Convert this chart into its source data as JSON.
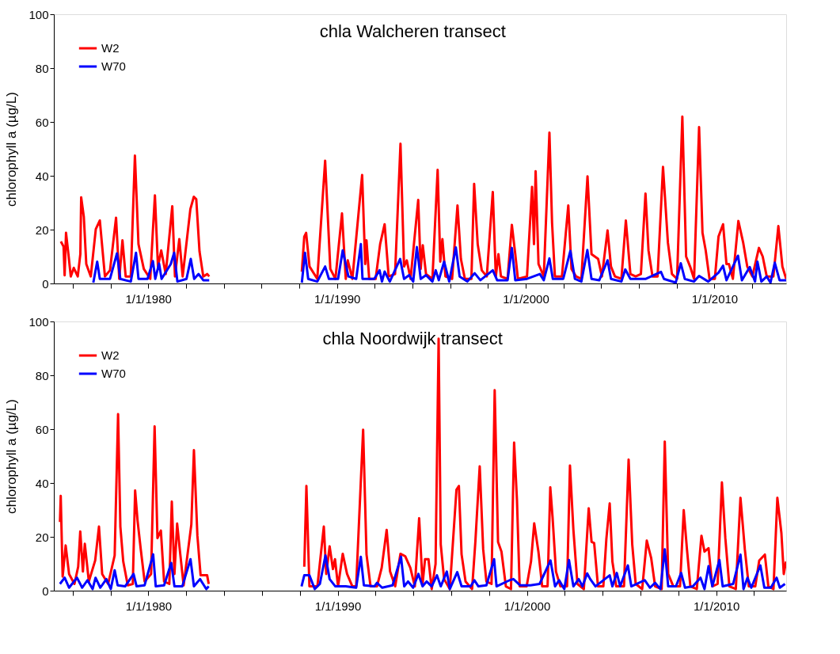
{
  "chart_data": [
    {
      "type": "line",
      "title": "chla Walcheren transect",
      "ylabel": "chlorophyll a (µg/L)",
      "xlim": [
        "1975-01-01",
        "2013-10-19"
      ],
      "ylim": [
        0,
        100
      ],
      "yticks": [
        0,
        20,
        40,
        60,
        80,
        100
      ],
      "xticks": [
        {
          "value": "1976-01-01",
          "label": null
        },
        {
          "value": "1978-01-01",
          "label": null
        },
        {
          "value": "1980-01-01",
          "label": "1/1/1980"
        },
        {
          "value": "1982-01-01",
          "label": null
        },
        {
          "value": "1984-01-01",
          "label": null
        },
        {
          "value": "1986-01-01",
          "label": null
        },
        {
          "value": "1988-01-01",
          "label": null
        },
        {
          "value": "1990-01-01",
          "label": "1/1/1990"
        },
        {
          "value": "1992-01-01",
          "label": null
        },
        {
          "value": "1994-01-01",
          "label": null
        },
        {
          "value": "1996-01-01",
          "label": null
        },
        {
          "value": "1998-01-01",
          "label": null
        },
        {
          "value": "2000-01-01",
          "label": "1/1/2000"
        },
        {
          "value": "2002-01-01",
          "label": null
        },
        {
          "value": "2004-01-01",
          "label": null
        },
        {
          "value": "2006-01-01",
          "label": null
        },
        {
          "value": "2008-01-01",
          "label": null
        },
        {
          "value": "2010-01-01",
          "label": "1/1/2010"
        },
        {
          "value": "2012-01-01",
          "label": null
        }
      ],
      "grid": false,
      "legend": "top left",
      "line_style": "solid",
      "series": [
        {
          "name": "W2",
          "color": "#ff0000",
          "x": [
            "1975-05-17",
            "1975-07-08",
            "1975-07-29",
            "1975-08-25",
            "1975-10-15",
            "1975-11-25",
            "1976-01-22",
            "1976-04-08",
            "1976-05-28",
            "1976-06-13",
            "1976-08-03",
            "1976-09-20",
            "1976-12-16",
            "1977-03-23",
            "1977-06-09",
            "1977-07-29",
            "1977-09-16",
            "1977-12-23",
            "1978-04-19",
            "1978-06-20",
            "1978-08-21",
            "1978-10-22",
            "1979-01-29",
            "1979-04-19",
            "1979-06-27",
            "1979-10-08",
            "1980-02-10",
            "1980-04-01",
            "1980-05-10",
            "1980-07-08",
            "1980-09-09",
            "1980-12-05",
            "1981-04-11",
            "1981-06-02",
            "1981-08-25",
            "1981-10-29",
            "1982-03-27",
            "1982-06-02",
            "1982-07-19",
            "1982-09-20",
            "1982-12-02",
            "1983-02-17",
            "1983-03-27",
            "1985-07-01",
            "1988-02-21",
            "1988-04-08",
            "1988-05-14",
            "1988-07-19",
            "1988-12-16",
            "1989-05-17",
            "1989-08-25",
            "1989-12-02",
            "1990-04-08",
            "1990-06-20",
            "1990-07-29",
            "1990-10-26",
            "1991-05-03",
            "1991-07-01",
            "1991-07-26",
            "1991-09-16",
            "1992-01-19",
            "1992-04-15",
            "1992-07-11",
            "1992-09-27",
            "1993-01-29",
            "1993-05-14",
            "1993-07-22",
            "1993-09-13",
            "1993-11-25",
            "1994-04-22",
            "1994-06-09",
            "1994-07-19",
            "1994-09-20",
            "1995-01-22",
            "1995-05-03",
            "1995-06-23",
            "1995-08-03",
            "1995-10-01",
            "1996-02-07",
            "1996-05-21",
            "1996-07-26",
            "1996-10-11",
            "1997-02-14",
            "1997-04-08",
            "1997-06-16",
            "1997-09-02",
            "1997-12-09",
            "1998-04-04",
            "1998-06-02",
            "1998-07-22",
            "1998-09-09",
            "1999-01-15",
            "1999-04-08",
            "1999-06-13",
            "1999-08-03",
            "2000-01-26",
            "2000-05-03",
            "2000-06-09",
            "2000-07-11",
            "2000-09-05",
            "2000-12-16",
            "2001-04-04",
            "2001-05-25",
            "2001-07-19",
            "2001-12-02",
            "2002-04-04",
            "2002-06-05",
            "2002-09-02",
            "2002-12-13",
            "2003-04-11",
            "2003-06-27",
            "2003-11-03",
            "2004-01-15",
            "2004-05-03",
            "2004-07-08",
            "2004-09-23",
            "2005-01-26",
            "2005-04-22",
            "2005-07-19",
            "2005-10-29",
            "2006-02-07",
            "2006-05-07",
            "2006-07-04",
            "2006-09-20",
            "2006-12-27",
            "2007-04-11",
            "2007-07-15",
            "2007-10-01",
            "2008-01-08",
            "2008-04-19",
            "2008-07-01",
            "2008-09-16",
            "2008-12-02",
            "2009-03-09",
            "2009-05-14",
            "2009-07-15",
            "2009-09-27",
            "2010-01-08",
            "2010-03-20",
            "2010-06-16",
            "2010-08-21",
            "2010-10-08",
            "2010-12-23",
            "2011-04-08",
            "2011-07-11",
            "2011-09-27",
            "2012-01-04",
            "2012-05-10",
            "2012-07-22",
            "2012-10-08",
            "2013-02-14",
            "2013-05-21",
            "2013-08-07",
            "2013-10-19"
          ],
          "values": [
            15.6,
            13.7,
            3,
            18.8,
            10,
            2.6,
            5.8,
            2.6,
            10.9,
            32,
            24.8,
            7.2,
            2.6,
            20.2,
            23.4,
            12.8,
            2.6,
            4.9,
            24.4,
            1.7,
            16,
            2.6,
            2.6,
            47.5,
            14.6,
            5.4,
            1.7,
            19.7,
            32.7,
            6.3,
            12.3,
            3.5,
            28.7,
            2.6,
            16.5,
            2.6,
            27.6,
            32.2,
            31.3,
            11.9,
            2.6,
            3.5,
            2.6,
            null,
            4.4,
            17.4,
            18.8,
            6.3,
            1.7,
            45.6,
            5.4,
            1.7,
            26,
            1.7,
            8.6,
            1.7,
            40.3,
            7.2,
            16,
            1.7,
            1.7,
            14.6,
            22,
            2.6,
            3.5,
            51.9,
            6.3,
            8.6,
            1.7,
            31,
            5.4,
            14.2,
            3.5,
            1.7,
            42.2,
            8.1,
            16.5,
            2.6,
            1.7,
            29,
            9.1,
            1.7,
            1.7,
            37,
            14.6,
            4.9,
            2.6,
            34,
            2.6,
            10.9,
            2.6,
            1.7,
            21.8,
            10.9,
            1.7,
            2.6,
            35.9,
            14.6,
            41.7,
            7.2,
            2.6,
            56,
            22.5,
            2.6,
            2.6,
            29,
            5.4,
            2.6,
            1.7,
            39.8,
            10.9,
            9.1,
            2.6,
            19.7,
            6.3,
            2.6,
            1.7,
            23.4,
            3.5,
            2.6,
            3.5,
            33.4,
            12.3,
            2.6,
            2.6,
            43.3,
            15.1,
            3.5,
            1.7,
            62,
            10,
            6.3,
            1.7,
            58.1,
            18.8,
            12.3,
            1.7,
            1.7,
            17.4,
            22,
            7.2,
            7.2,
            1.7,
            23.2,
            15.1,
            6.3,
            2.6,
            13.2,
            10,
            2.6,
            2.6,
            21.3,
            6.3,
            1.7
          ]
        },
        {
          "name": "W70",
          "color": "#0000ff",
          "x": [
            "1977-02-03",
            "1977-04-19",
            "1977-06-09",
            "1977-12-23",
            "1978-05-07",
            "1978-07-11",
            "1979-01-29",
            "1979-05-10",
            "1979-06-27",
            "1979-12-20",
            "1980-04-01",
            "1980-05-17",
            "1980-07-29",
            "1980-09-16",
            "1981-03-13",
            "1981-05-17",
            "1981-07-19",
            "1982-01-11",
            "1982-04-04",
            "1982-06-09",
            "1982-09-02",
            "1982-12-02",
            "1983-03-27",
            "1985-07-01",
            "1988-02-21",
            "1988-04-22",
            "1988-06-23",
            "1988-12-16",
            "1989-05-17",
            "1989-07-29",
            "1990-01-22",
            "1990-04-22",
            "1990-08-10",
            "1991-01-08",
            "1991-04-08",
            "1991-05-10",
            "1991-12-23",
            "1992-04-04",
            "1992-05-21",
            "1992-07-11",
            "1992-10-19",
            "1993-05-07",
            "1993-07-22",
            "1993-10-29",
            "1994-01-15",
            "1994-03-27",
            "1994-06-09",
            "1994-09-20",
            "1995-01-22",
            "1995-03-27",
            "1995-05-25",
            "1995-09-05",
            "1995-12-13",
            "1996-04-19",
            "1996-07-01",
            "1996-11-28",
            "1997-04-19",
            "1997-08-07",
            "1998-04-04",
            "1998-06-27",
            "1999-01-15",
            "1999-04-08",
            "1999-06-13",
            "2000-01-26",
            "2000-10-01",
            "2000-12-16",
            "2001-04-04",
            "2001-06-09",
            "2001-12-27",
            "2002-05-14",
            "2002-08-10",
            "2002-12-13",
            "2003-04-08",
            "2003-06-27",
            "2003-11-25",
            "2004-05-03",
            "2004-07-08",
            "2005-01-26",
            "2005-04-11",
            "2005-07-19",
            "2006-05-14",
            "2007-03-02",
            "2007-04-29",
            "2007-12-13",
            "2008-03-20",
            "2008-06-05",
            "2008-11-28",
            "2009-03-09",
            "2009-09-02",
            "2010-03-20",
            "2010-06-16",
            "2010-08-21",
            "2011-04-01",
            "2011-06-16",
            "2011-11-14",
            "2012-02-25",
            "2012-04-11",
            "2012-06-27",
            "2012-10-08",
            "2012-12-20",
            "2013-03-13",
            "2013-06-13",
            "2013-10-19"
          ],
          "values": [
            0.3,
            8.1,
            1.7,
            1.7,
            11.2,
            1.7,
            0.7,
            11.4,
            1.7,
            1.7,
            8.3,
            1.7,
            7.4,
            1.7,
            7.2,
            11.4,
            0.7,
            1.7,
            9.1,
            1.7,
            3.5,
            1.2,
            1.2,
            null,
            0.3,
            11.4,
            1.7,
            0.7,
            6.3,
            1.7,
            1.7,
            12.3,
            2.6,
            1.7,
            14.6,
            1.7,
            1.7,
            4.9,
            0.7,
            4.4,
            0.7,
            9.1,
            1.7,
            3.1,
            0.7,
            13.5,
            1.7,
            3.1,
            0.7,
            4.9,
            1.2,
            8.1,
            0.7,
            13.4,
            2.6,
            0.7,
            3.8,
            1.2,
            4.9,
            1.2,
            1.2,
            13.2,
            1.2,
            1.7,
            3.5,
            1.2,
            9.3,
            1.7,
            1.7,
            12.1,
            1.7,
            0.7,
            12.4,
            1.7,
            1.2,
            8.6,
            1.7,
            0.7,
            5.2,
            1.7,
            1.7,
            4.3,
            1.7,
            0.3,
            7.5,
            1.7,
            0.7,
            2.8,
            0.7,
            4,
            6.6,
            1.2,
            10.3,
            1.2,
            6.1,
            0.7,
            8.1,
            0.7,
            2.6,
            0.3,
            7.7,
            1.2,
            1.2
          ]
        }
      ]
    },
    {
      "type": "line",
      "title": "chla Noordwijk transect",
      "ylabel": "chlorophyll a (µg/L)",
      "xlim": [
        "1975-01-01",
        "2013-09-13"
      ],
      "ylim": [
        0,
        100
      ],
      "yticks": [
        0,
        20,
        40,
        60,
        80,
        100
      ],
      "xticks": [
        {
          "value": "1976-01-01",
          "label": null
        },
        {
          "value": "1978-01-01",
          "label": null
        },
        {
          "value": "1980-01-01",
          "label": "1/1/1980"
        },
        {
          "value": "1982-01-01",
          "label": null
        },
        {
          "value": "1984-01-01",
          "label": null
        },
        {
          "value": "1986-01-01",
          "label": null
        },
        {
          "value": "1988-01-01",
          "label": null
        },
        {
          "value": "1990-01-01",
          "label": "1/1/1990"
        },
        {
          "value": "1992-01-01",
          "label": null
        },
        {
          "value": "1994-01-01",
          "label": null
        },
        {
          "value": "1996-01-01",
          "label": null
        },
        {
          "value": "1998-01-01",
          "label": null
        },
        {
          "value": "2000-01-01",
          "label": "1/1/2000"
        },
        {
          "value": "2002-01-01",
          "label": null
        },
        {
          "value": "2004-01-01",
          "label": null
        },
        {
          "value": "2006-01-01",
          "label": null
        },
        {
          "value": "2008-01-01",
          "label": null
        },
        {
          "value": "2010-01-01",
          "label": "1/1/2010"
        },
        {
          "value": "2012-01-01",
          "label": null
        }
      ],
      "grid": false,
      "legend": "top left",
      "line_style": "solid",
      "series": [
        {
          "name": "W2",
          "color": "#ff0000",
          "x": [
            "1975-04-29",
            "1975-05-14",
            "1975-06-20",
            "1975-08-17",
            "1975-10-22",
            "1976-02-03",
            "1976-04-15",
            "1976-05-25",
            "1976-07-15",
            "1976-08-21",
            "1976-11-07",
            "1977-03-09",
            "1977-05-21",
            "1977-07-22",
            "1977-11-14",
            "1978-03-20",
            "1978-05-25",
            "1978-07-08",
            "1978-09-02",
            "1978-11-28",
            "1979-03-05",
            "1979-04-19",
            "1979-06-05",
            "1979-08-03",
            "1979-10-19",
            "1980-02-21",
            "1980-04-29",
            "1980-06-23",
            "1980-08-28",
            "1980-10-29",
            "1981-02-07",
            "1981-03-27",
            "1981-05-17",
            "1981-07-08",
            "1981-08-25",
            "1981-11-10",
            "1982-04-08",
            "1982-05-28",
            "1982-08-03",
            "1982-10-04",
            "1983-02-07",
            "1983-03-09",
            "1985-07-01",
            "1988-03-27",
            "1988-05-07",
            "1988-07-04",
            "1988-12-05",
            "1989-04-08",
            "1989-05-25",
            "1989-07-29",
            "1989-10-01",
            "1989-11-10",
            "1990-01-08",
            "1990-04-08",
            "1990-07-01",
            "1990-10-11",
            "1990-12-23",
            "1991-05-07",
            "1991-07-11",
            "1991-09-27",
            "1992-01-29",
            "1992-04-29",
            "1992-08-03",
            "1992-10-08",
            "1993-01-15",
            "1993-04-26",
            "1993-07-26",
            "1993-11-03",
            "1994-01-29",
            "1994-04-22",
            "1994-06-27",
            "1994-08-14",
            "1994-10-19",
            "1994-12-20",
            "1995-03-05",
            "1995-05-03",
            "1995-06-13",
            "1995-08-17",
            "1995-12-05",
            "1996-04-11",
            "1996-05-28",
            "1996-07-19",
            "1996-10-04",
            "1997-02-07",
            "1997-04-11",
            "1997-07-04",
            "1997-09-09",
            "1997-11-10",
            "1998-02-17",
            "1998-04-19",
            "1998-06-23",
            "1998-08-28",
            "1998-11-21",
            "1999-02-28",
            "1999-04-29",
            "1999-06-23",
            "1999-08-14",
            "1999-12-27",
            "2000-03-20",
            "2000-05-21",
            "2000-08-10",
            "2000-10-22",
            "2001-02-03",
            "2001-03-27",
            "2001-05-10",
            "2001-07-15",
            "2001-10-08",
            "2002-02-14",
            "2002-04-11",
            "2002-06-16",
            "2002-09-02",
            "2003-01-04",
            "2003-04-08",
            "2003-06-02",
            "2003-07-22",
            "2003-10-04",
            "2004-01-15",
            "2004-03-13",
            "2004-05-17",
            "2004-07-08",
            "2004-09-20",
            "2005-02-17",
            "2005-05-17",
            "2005-07-26",
            "2005-10-01",
            "2006-02-03",
            "2006-05-03",
            "2006-07-26",
            "2006-10-11",
            "2007-02-14",
            "2007-04-15",
            "2007-06-20",
            "2007-09-27",
            "2008-02-03",
            "2008-04-15",
            "2008-06-16",
            "2008-08-21",
            "2008-12-23",
            "2009-03-23",
            "2009-05-21",
            "2009-08-07",
            "2009-10-19",
            "2010-01-29",
            "2010-04-22",
            "2010-06-27",
            "2010-09-13",
            "2011-01-15",
            "2011-04-15",
            "2011-07-08",
            "2011-09-23",
            "2012-01-26",
            "2012-04-11",
            "2012-07-29",
            "2012-10-04",
            "2013-01-11",
            "2013-03-27",
            "2013-06-13",
            "2013-07-29",
            "2013-09-09"
          ],
          "values": [
            25.5,
            35.2,
            5.2,
            16.8,
            6.2,
            2.5,
            8.9,
            22,
            7.1,
            17.4,
            3.4,
            11.2,
            23.8,
            6.2,
            2.5,
            13.1,
            65.6,
            23.8,
            10.8,
            2,
            2.5,
            37.2,
            26,
            15.8,
            3.4,
            6.2,
            61,
            19.5,
            22.3,
            3.4,
            2.5,
            33.1,
            6.2,
            24.9,
            15.8,
            2,
            24.6,
            52.2,
            20.4,
            5.7,
            5.7,
            2.5,
            null,
            8.9,
            38.9,
            1.6,
            1.6,
            23.8,
            6.2,
            16.5,
            8,
            11.7,
            1.6,
            13.7,
            6.2,
            1.6,
            1.6,
            59.8,
            13.5,
            1.6,
            1.6,
            8.5,
            22.6,
            7.1,
            1.6,
            13.7,
            12.8,
            8.5,
            1.6,
            26.9,
            2.5,
            11.7,
            11.7,
            0.6,
            9.9,
            93.6,
            17.2,
            4.3,
            0.6,
            37.5,
            38.9,
            13.5,
            3.4,
            0.6,
            18.1,
            46.2,
            15.4,
            3.4,
            2.5,
            74.5,
            18.1,
            14.5,
            1.6,
            0.6,
            55,
            33.8,
            1.6,
            1.6,
            10.8,
            25,
            14.5,
            1.6,
            1.6,
            38.4,
            27.3,
            7.1,
            1.6,
            1.6,
            46.5,
            22.7,
            2.5,
            0.6,
            30.6,
            18.1,
            17.7,
            1.6,
            1.6,
            19.1,
            32.4,
            10.8,
            1.6,
            1.6,
            48.7,
            17.2,
            2.5,
            0.6,
            18.6,
            12.2,
            1.6,
            0.6,
            55.4,
            6.2,
            1.6,
            1.6,
            29.9,
            15.4,
            1.6,
            0.6,
            20.4,
            14.5,
            15.8,
            1.6,
            2.5,
            40.2,
            19.5,
            1.6,
            0.6,
            34.5,
            15.4,
            1.6,
            1.6,
            11.2,
            13.4,
            1.6,
            0.6,
            34.5,
            21.4,
            6.2,
            10.8
          ]
        },
        {
          "name": "W70",
          "color": "#0000ff",
          "x": [
            "1975-04-29",
            "1975-07-29",
            "1975-10-22",
            "1976-03-23",
            "1976-07-01",
            "1976-10-11",
            "1977-01-19",
            "1977-03-16",
            "1977-06-16",
            "1977-10-11",
            "1978-01-04",
            "1978-03-20",
            "1978-05-17",
            "1978-10-08",
            "1979-03-20",
            "1979-05-17",
            "1979-10-19",
            "1980-04-01",
            "1980-05-21",
            "1980-10-29",
            "1981-03-16",
            "1981-05-17",
            "1981-10-15",
            "1982-03-23",
            "1982-05-28",
            "1982-09-23",
            "1983-01-22",
            "1983-03-09",
            "1985-07-01",
            "1988-02-03",
            "1988-03-27",
            "1988-07-04",
            "1988-10-15",
            "1989-01-22",
            "1989-05-10",
            "1989-07-29",
            "1989-11-17",
            "1990-06-05",
            "1990-12-23",
            "1991-03-23",
            "1991-05-21",
            "1991-12-09",
            "1992-01-29",
            "1992-05-07",
            "1992-11-25",
            "1993-05-07",
            "1993-07-08",
            "1993-09-20",
            "1993-12-27",
            "1994-04-08",
            "1994-06-27",
            "1994-09-13",
            "1994-12-20",
            "1995-04-01",
            "1995-06-13",
            "1995-10-08",
            "1995-12-05",
            "1996-04-26",
            "1996-07-19",
            "1997-01-11",
            "1997-03-23",
            "1997-06-09",
            "1997-11-10",
            "1998-04-08",
            "1998-05-25",
            "1999-02-03",
            "1999-04-15",
            "1999-08-21",
            "2000-03-09",
            "2000-09-02",
            "2001-04-01",
            "2001-06-27",
            "2001-09-13",
            "2001-12-23",
            "2002-03-23",
            "2002-06-16",
            "2002-09-27",
            "2002-12-09",
            "2003-03-09",
            "2003-05-07",
            "2003-08-17",
            "2004-05-17",
            "2004-07-08",
            "2004-10-01",
            "2004-12-05",
            "2005-05-03",
            "2005-07-08",
            "2006-03-23",
            "2006-07-04",
            "2006-10-11",
            "2007-01-22",
            "2007-04-15",
            "2007-06-20",
            "2007-11-17",
            "2008-02-25",
            "2008-05-10",
            "2008-10-08",
            "2009-03-05",
            "2009-05-21",
            "2009-08-07",
            "2009-10-19",
            "2010-03-05",
            "2010-05-07",
            "2010-11-25",
            "2011-04-15",
            "2011-06-13",
            "2011-08-28",
            "2011-11-10",
            "2012-05-03",
            "2012-07-19",
            "2012-11-21",
            "2013-03-13",
            "2013-05-14",
            "2013-08-21"
          ],
          "values": [
            2.5,
            4.8,
            1.1,
            4.8,
            1.1,
            3.9,
            0.6,
            4.8,
            1.1,
            4.3,
            0.6,
            7.6,
            2,
            1.6,
            6.2,
            1.6,
            2,
            13.5,
            1.6,
            2,
            10.3,
            1.6,
            1.6,
            11.7,
            1.6,
            4.3,
            0.6,
            1.6,
            null,
            1.6,
            5.7,
            5.7,
            0.6,
            2.5,
            13.1,
            4.3,
            1.6,
            1.6,
            1.1,
            12.6,
            2,
            1.6,
            2.9,
            1.1,
            2,
            12.6,
            1.6,
            3.4,
            1.1,
            6.2,
            1.6,
            3.4,
            1.6,
            5.7,
            1.6,
            7.1,
            0.6,
            6.9,
            1.6,
            1.6,
            3.9,
            1.6,
            2,
            11.7,
            1.6,
            3.9,
            4.3,
            2,
            2,
            2.5,
            11.2,
            1.6,
            3.9,
            0.6,
            11.4,
            1.6,
            4.3,
            1.6,
            6.4,
            4.3,
            1.6,
            5.7,
            1.6,
            6.6,
            1.6,
            9.4,
            1.6,
            3.9,
            1.1,
            2.9,
            0.6,
            15.4,
            1.6,
            1.6,
            6.6,
            1.1,
            1.6,
            4.8,
            0.6,
            9.1,
            1.6,
            11.4,
            1.6,
            2.5,
            13.4,
            0.6,
            4.8,
            1.1,
            9.4,
            1.1,
            1.1,
            4.8,
            1.1,
            2.5
          ]
        }
      ]
    }
  ]
}
